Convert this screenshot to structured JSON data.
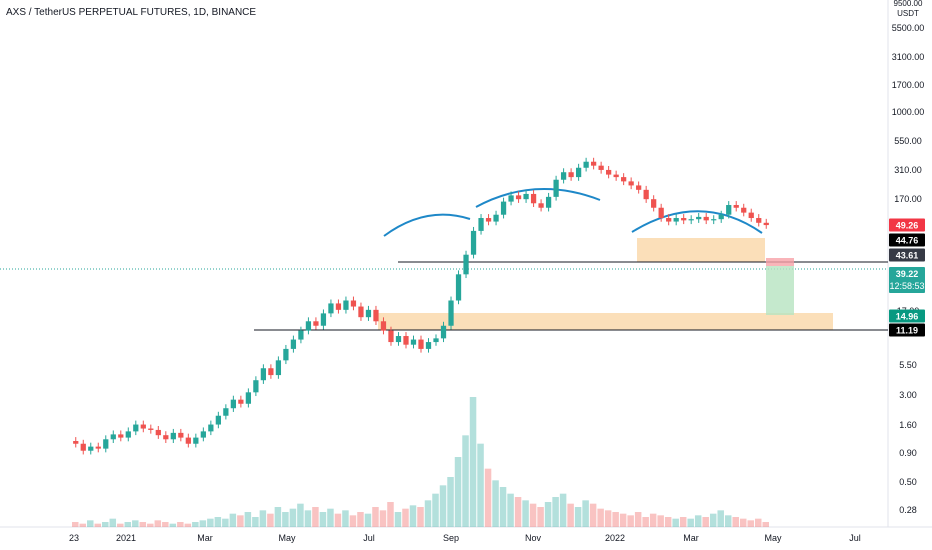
{
  "chart_data": {
    "type": "candlestick",
    "title": "AXS / TetherUS PERPETUAL FUTURES, 1D, BINANCE",
    "y_axis": {
      "scale": "log",
      "unit_label_top": "9500.00",
      "unit_label": "USDT",
      "ticks": [
        "5500.00",
        "3100.00",
        "1700.00",
        "1000.00",
        "550.00",
        "310.00",
        "170.00",
        "17.00",
        "5.50",
        "3.00",
        "1.60",
        "0.90",
        "0.50",
        "0.28"
      ]
    },
    "x_axis": {
      "ticks": [
        "23",
        "2021",
        "Mar",
        "May",
        "Jul",
        "Sep",
        "Nov",
        "2022",
        "Mar",
        "May",
        "Jul"
      ]
    },
    "price_labels": [
      {
        "value": "49.26",
        "color": "#f23645"
      },
      {
        "value": "44.76",
        "color": "#000000"
      },
      {
        "value": "43.61",
        "color": "#363a45"
      },
      {
        "value": "39.22",
        "countdown": "12:58:53",
        "color": "#26a69a"
      },
      {
        "value": "14.96",
        "color": "#089981"
      },
      {
        "value": "11.19",
        "color": "#000000"
      }
    ],
    "candles": [
      [
        0.58,
        0.55
      ],
      [
        0.55,
        0.48
      ],
      [
        0.48,
        0.52
      ],
      [
        0.52,
        0.5
      ],
      [
        0.5,
        0.6
      ],
      [
        0.6,
        0.66
      ],
      [
        0.66,
        0.62
      ],
      [
        0.62,
        0.7
      ],
      [
        0.7,
        0.8
      ],
      [
        0.8,
        0.74
      ],
      [
        0.74,
        0.72
      ],
      [
        0.72,
        0.65
      ],
      [
        0.65,
        0.6
      ],
      [
        0.6,
        0.68
      ],
      [
        0.68,
        0.62
      ],
      [
        0.62,
        0.55
      ],
      [
        0.55,
        0.62
      ],
      [
        0.62,
        0.7
      ],
      [
        0.7,
        0.8
      ],
      [
        0.8,
        0.95
      ],
      [
        0.95,
        1.1
      ],
      [
        1.1,
        1.3
      ],
      [
        1.3,
        1.2
      ],
      [
        1.2,
        1.5
      ],
      [
        1.5,
        1.9
      ],
      [
        1.9,
        2.4
      ],
      [
        2.4,
        2.1
      ],
      [
        2.1,
        2.8
      ],
      [
        2.8,
        3.5
      ],
      [
        3.5,
        4.2
      ],
      [
        4.2,
        5.0
      ],
      [
        5.0,
        6.0
      ],
      [
        6.0,
        5.5
      ],
      [
        5.5,
        7.0
      ],
      [
        7.0,
        8.5
      ],
      [
        8.5,
        7.5
      ],
      [
        7.5,
        9.0
      ],
      [
        9.0,
        8.0
      ],
      [
        8.0,
        6.5
      ],
      [
        6.5,
        7.5
      ],
      [
        7.5,
        6.0
      ],
      [
        6.0,
        5.0
      ],
      [
        5.0,
        4.0
      ],
      [
        4.0,
        4.5
      ],
      [
        4.5,
        3.8
      ],
      [
        3.8,
        4.2
      ],
      [
        4.2,
        3.5
      ],
      [
        3.5,
        4.0
      ],
      [
        4.0,
        4.3
      ],
      [
        4.3,
        5.5
      ],
      [
        5.5,
        9.0
      ],
      [
        9.0,
        15.0
      ],
      [
        15.0,
        22.0
      ],
      [
        22.0,
        35.0
      ],
      [
        35.0,
        45.0
      ],
      [
        45.0,
        42.0
      ],
      [
        42.0,
        48.0
      ],
      [
        48.0,
        62.0
      ],
      [
        62.0,
        70.0
      ],
      [
        70.0,
        65.0
      ],
      [
        65.0,
        72.0
      ],
      [
        72.0,
        60.0
      ],
      [
        60.0,
        55.0
      ],
      [
        55.0,
        68.0
      ],
      [
        68.0,
        95.0
      ],
      [
        95.0,
        110.0
      ],
      [
        110.0,
        100.0
      ],
      [
        100.0,
        120.0
      ],
      [
        120.0,
        135.0
      ],
      [
        135.0,
        125.0
      ],
      [
        125.0,
        115.0
      ],
      [
        115.0,
        105.0
      ],
      [
        105.0,
        100.0
      ],
      [
        100.0,
        92.0
      ],
      [
        92.0,
        85.0
      ],
      [
        85.0,
        78.0
      ],
      [
        78.0,
        65.0
      ],
      [
        65.0,
        55.0
      ],
      [
        55.0,
        45.0
      ],
      [
        45.0,
        42.0
      ],
      [
        42.0,
        45.0
      ],
      [
        45.0,
        43.0
      ],
      [
        43.0,
        44.0
      ],
      [
        44.0,
        46.0
      ],
      [
        46.0,
        43.0
      ],
      [
        43.0,
        44.0
      ],
      [
        44.0,
        48.0
      ],
      [
        48.0,
        58.0
      ],
      [
        58.0,
        55.0
      ],
      [
        55.0,
        50.0
      ],
      [
        50.0,
        45.0
      ],
      [
        45.0,
        41.0
      ],
      [
        41.0,
        39.22
      ]
    ],
    "volume": [
      3,
      2,
      4,
      2,
      3,
      5,
      2,
      3,
      4,
      3,
      2,
      4,
      3,
      2,
      3,
      2,
      3,
      4,
      5,
      6,
      5,
      8,
      7,
      9,
      6,
      10,
      8,
      12,
      9,
      11,
      14,
      10,
      12,
      9,
      11,
      8,
      10,
      7,
      9,
      8,
      12,
      10,
      15,
      9,
      11,
      13,
      12,
      16,
      20,
      25,
      30,
      42,
      55,
      78,
      50,
      35,
      28,
      24,
      20,
      18,
      16,
      14,
      12,
      15,
      18,
      20,
      14,
      12,
      16,
      14,
      11,
      10,
      9,
      8,
      7,
      9,
      6,
      8,
      7,
      6,
      5,
      6,
      5,
      7,
      6,
      8,
      10,
      7,
      6,
      5,
      4,
      5,
      3
    ],
    "patterns": {
      "arcs_color": "#1e88c8",
      "zones": [
        {
          "low": 40,
          "high": 52,
          "color": "#f9c98a"
        },
        {
          "low": 11.19,
          "high": 14.96,
          "color": "#f9c98a"
        }
      ],
      "lines": [
        {
          "value": 44.76
        },
        {
          "value": 11.19
        }
      ],
      "position": {
        "entry": 43.61,
        "stop": 49.26,
        "target": 14.96
      }
    }
  }
}
